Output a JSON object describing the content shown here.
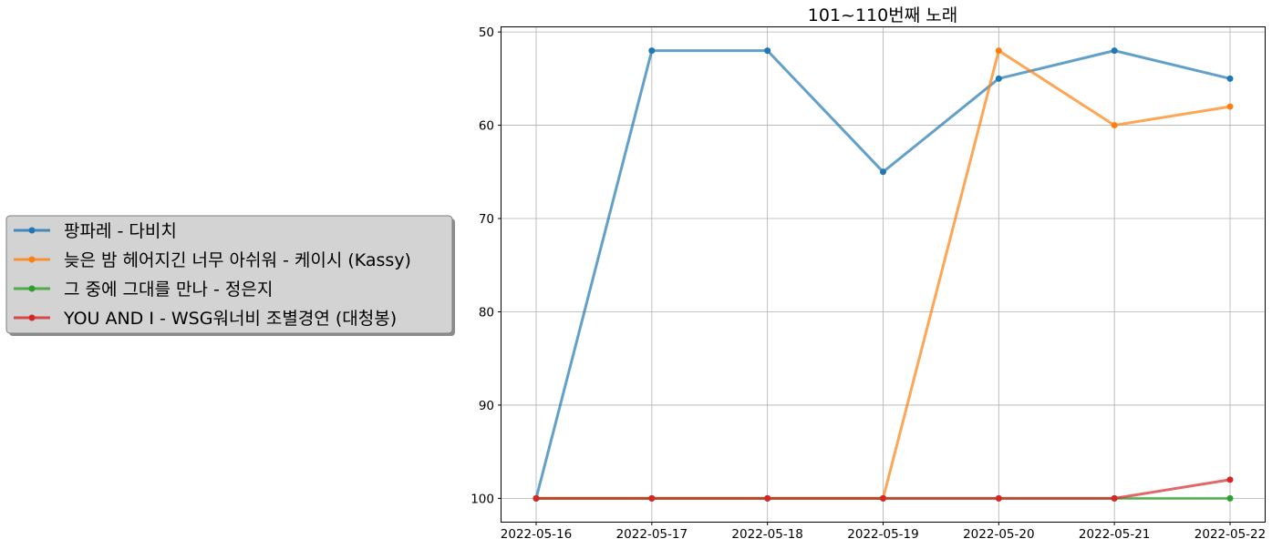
{
  "chart_data": {
    "type": "line",
    "title": "101~110번째 노래",
    "xlabel": "",
    "ylabel": "",
    "x": [
      "2022-05-16",
      "2022-05-17",
      "2022-05-18",
      "2022-05-19",
      "2022-05-20",
      "2022-05-21",
      "2022-05-22"
    ],
    "ylim": [
      102.5,
      49.5
    ],
    "y_inverted": true,
    "y_ticks": [
      50,
      60,
      70,
      80,
      90,
      100
    ],
    "grid": true,
    "legend_position": "outside-left",
    "series": [
      {
        "name": "팡파레 - 다비치",
        "color": "#1f77b4",
        "values": [
          100,
          52,
          52,
          65,
          55,
          52,
          55
        ]
      },
      {
        "name": "늦은 밤 헤어지긴 너무 아쉬워 - 케이시 (Kassy)",
        "color": "#ff7f0e",
        "values": [
          100,
          100,
          100,
          100,
          52,
          60,
          58
        ]
      },
      {
        "name": "그 중에 그대를 만나 - 정은지",
        "color": "#2ca02c",
        "values": [
          100,
          100,
          100,
          100,
          100,
          100,
          100
        ]
      },
      {
        "name": "YOU AND I - WSG워너비 조별경연 (대청봉)",
        "color": "#d62728",
        "values": [
          100,
          100,
          100,
          100,
          100,
          100,
          98
        ]
      }
    ]
  }
}
